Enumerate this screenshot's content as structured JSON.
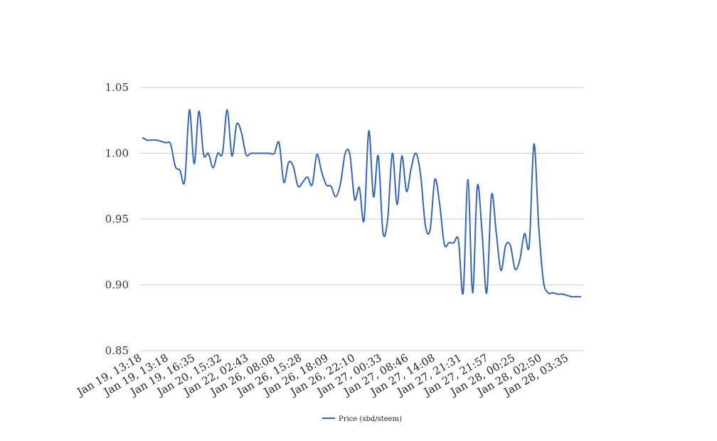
{
  "chart_data": {
    "type": "line",
    "title": "",
    "xlabel": "",
    "ylabel": "",
    "ylim": [
      0.85,
      1.05
    ],
    "y_ticks": [
      "0.85",
      "0.90",
      "0.95",
      "1.00",
      "1.05"
    ],
    "y_tick_values": [
      0.85,
      0.9,
      0.95,
      1.0,
      1.05
    ],
    "x_tick_labels": [
      "Jan 19, 13:18",
      "Jan 19, 13:18",
      "Jan 19, 16:35",
      "Jan 20, 15:32",
      "Jan 22, 02:43",
      "Jan 26, 08:08",
      "Jan 26, 15:28",
      "Jan 26, 18:09",
      "Jan 26, 22:10",
      "Jan 27, 00:33",
      "Jan 27, 08:46",
      "Jan 27, 14:08",
      "Jan 27, 21:31",
      "Jan 27, 21:57",
      "Jan 28, 00:25",
      "Jan 28, 02:50",
      "Jan 28, 03:35"
    ],
    "grid": true,
    "legend_position": "bottom",
    "series": [
      {
        "name": "Price (sbd/steem)",
        "color": "#3366bb",
        "values": [
          1.012,
          1.01,
          1.01,
          1.01,
          1.009,
          1.008,
          1.007,
          0.99,
          0.987,
          0.979,
          1.033,
          0.992,
          1.032,
          0.999,
          1.0,
          0.989,
          1.0,
          1.0,
          1.033,
          0.998,
          1.022,
          1.016,
          0.999,
          1.0,
          1.0,
          1.0,
          1.0,
          1.0,
          1.0,
          1.008,
          0.978,
          0.993,
          0.99,
          0.975,
          0.978,
          0.982,
          0.976,
          0.999,
          0.986,
          0.976,
          0.975,
          0.967,
          0.977,
          1.0,
          0.999,
          0.965,
          0.974,
          0.949,
          1.017,
          0.967,
          0.998,
          0.94,
          0.95,
          1.0,
          0.961,
          0.998,
          0.971,
          0.989,
          1.0,
          0.983,
          0.945,
          0.942,
          0.98,
          0.962,
          0.931,
          0.932,
          0.932,
          0.934,
          0.894,
          0.98,
          0.894,
          0.975,
          0.94,
          0.894,
          0.968,
          0.94,
          0.911,
          0.93,
          0.93,
          0.912,
          0.919,
          0.939,
          0.93,
          1.007,
          0.945,
          0.903,
          0.894,
          0.894,
          0.893,
          0.893,
          0.892,
          0.891,
          0.891,
          0.891
        ]
      }
    ]
  }
}
